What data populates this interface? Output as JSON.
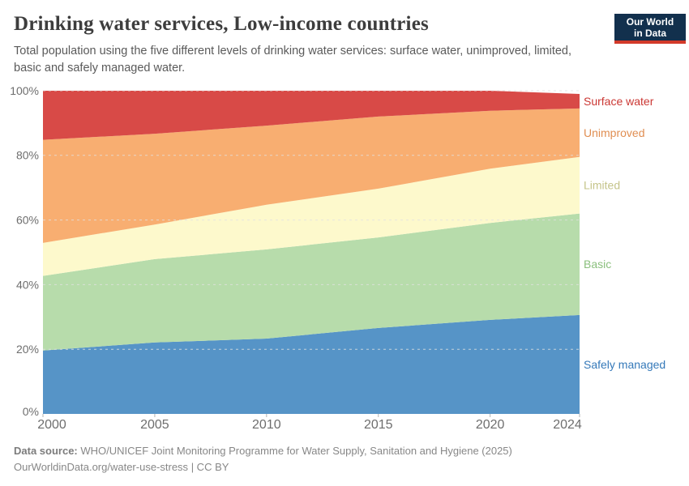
{
  "header": {
    "title": "Drinking water services, Low-income countries",
    "subtitle": "Total population using the five different levels of drinking water services: surface water, unimproved, limited, basic and safely managed water.",
    "logo": {
      "line1": "Our World",
      "line2": "in Data",
      "bg_color": "#12304d",
      "accent_color": "#d23a2a"
    }
  },
  "chart_data": {
    "type": "area",
    "stacked": true,
    "relative": true,
    "title": "Drinking water services, Low-income countries",
    "xlabel": "",
    "ylabel": "",
    "xlim": [
      2000,
      2024
    ],
    "ylim": [
      0,
      100
    ],
    "grid": "dashed horizontal every 20%",
    "legend_position": "right edge labels, one per series",
    "x": [
      2000,
      2005,
      2010,
      2015,
      2020,
      2024
    ],
    "x_ticks": [
      2000,
      2005,
      2010,
      2015,
      2020,
      2024
    ],
    "x_tick_labels": [
      "2000",
      "2005",
      "2010",
      "2015",
      "2020",
      "2024"
    ],
    "y_ticks": [
      0,
      20,
      40,
      60,
      80,
      100
    ],
    "y_tick_labels": [
      "0%",
      "20%",
      "40%",
      "60%",
      "80%",
      "100%"
    ],
    "series": [
      {
        "name": "Safely managed",
        "color": "#5694c7",
        "label_color": "#3579b9",
        "values": [
          19.6,
          22.1,
          23.3,
          26.6,
          29.1,
          30.6
        ]
      },
      {
        "name": "Basic",
        "color": "#b7dcab",
        "label_color": "#8abf7d",
        "values": [
          23.1,
          25.8,
          27.6,
          28.0,
          30.0,
          31.4
        ]
      },
      {
        "name": "Limited",
        "color": "#fdf9cc",
        "label_color": "#c5c48a",
        "values": [
          10.2,
          10.7,
          13.8,
          15.1,
          16.8,
          17.5
        ]
      },
      {
        "name": "Unimproved",
        "color": "#f8ae71",
        "label_color": "#e08e52",
        "values": [
          31.9,
          28.1,
          24.5,
          22.3,
          17.9,
          15.0
        ]
      },
      {
        "name": "Surface water",
        "color": "#d84a47",
        "label_color": "#cb3733",
        "values": [
          15.2,
          13.3,
          10.8,
          8.0,
          6.2,
          4.5
        ]
      }
    ]
  },
  "footer": {
    "source_label": "Data source:",
    "source_text": "WHO/UNICEF Joint Monitoring Programme for Water Supply, Sanitation and Hygiene (2025)",
    "attribution_link": "OurWorldinData.org/water-use-stress",
    "attribution_license": " | CC BY"
  }
}
